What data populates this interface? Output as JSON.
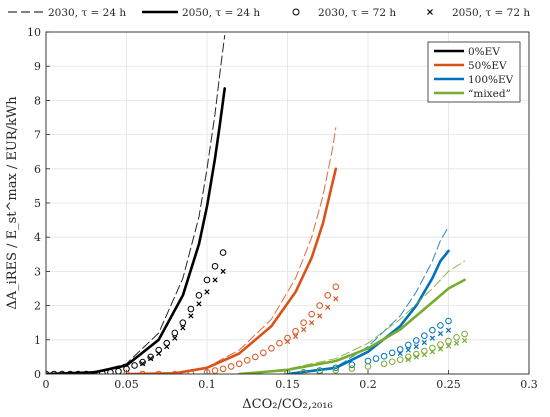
{
  "chart_data": {
    "type": "line",
    "xlabel": "ΔCO₂/CO₂,₂₀₁₆",
    "ylabel": "ΔA_iRES / E_st^max / EUR/kWh",
    "xlim": [
      0,
      0.3
    ],
    "ylim": [
      0,
      10
    ],
    "x_ticks": [
      "0",
      "0.05",
      "0.1",
      "0.15",
      "0.2",
      "0.25",
      "0.3"
    ],
    "y_ticks": [
      "0",
      "1",
      "2",
      "3",
      "4",
      "5",
      "6",
      "7",
      "8",
      "9",
      "10"
    ],
    "grid": true,
    "top_legend": [
      {
        "label": "2030, τ = 24 h",
        "style": "dashed-line"
      },
      {
        "label": "2050, τ = 24 h",
        "style": "solid-line"
      },
      {
        "label": "2030, τ = 72 h",
        "style": "circle-marker"
      },
      {
        "label": "2050, τ = 72 h",
        "style": "x-marker"
      }
    ],
    "legend_position": "top-right",
    "scenario_legend": [
      {
        "label": "0%EV",
        "color": "#000000"
      },
      {
        "label": "50%EV",
        "color": "#D95319"
      },
      {
        "label": "100%EV",
        "color": "#0072BD"
      },
      {
        "label": "“mixed”",
        "color": "#77AC30"
      }
    ],
    "series": [
      {
        "scenario": "0%EV",
        "case": "2030, τ = 24 h",
        "color": "#000000",
        "x": [
          0,
          0.03,
          0.05,
          0.07,
          0.085,
          0.095,
          0.1,
          0.105,
          0.108,
          0.111
        ],
        "y": [
          0,
          0.05,
          0.3,
          1.2,
          2.8,
          4.6,
          6.0,
          7.6,
          8.8,
          9.9
        ]
      },
      {
        "scenario": "0%EV",
        "case": "2050, τ = 24 h",
        "color": "#000000",
        "x": [
          0,
          0.03,
          0.05,
          0.07,
          0.085,
          0.095,
          0.1,
          0.105,
          0.108,
          0.111
        ],
        "y": [
          0,
          0.05,
          0.25,
          1.0,
          2.3,
          3.8,
          4.9,
          6.3,
          7.3,
          8.35
        ]
      },
      {
        "scenario": "0%EV",
        "case": "2030, τ = 72 h",
        "color": "#000000",
        "x": [
          0,
          0.005,
          0.01,
          0.015,
          0.02,
          0.025,
          0.03,
          0.035,
          0.04,
          0.045,
          0.05,
          0.055,
          0.06,
          0.065,
          0.07,
          0.075,
          0.08,
          0.085,
          0.09,
          0.095,
          0.1,
          0.105,
          0.11
        ],
        "y": [
          0,
          0,
          0,
          0,
          0,
          0,
          0,
          0.02,
          0.05,
          0.08,
          0.15,
          0.25,
          0.35,
          0.5,
          0.7,
          0.9,
          1.2,
          1.5,
          1.9,
          2.3,
          2.75,
          3.15,
          3.55
        ]
      },
      {
        "scenario": "0%EV",
        "case": "2050, τ = 72 h",
        "color": "#000000",
        "x": [
          0.06,
          0.065,
          0.07,
          0.075,
          0.08,
          0.085,
          0.09,
          0.095,
          0.1,
          0.105,
          0.11
        ],
        "y": [
          0.3,
          0.45,
          0.6,
          0.8,
          1.05,
          1.35,
          1.7,
          2.05,
          2.4,
          2.75,
          3.0
        ]
      },
      {
        "scenario": "50%EV",
        "case": "2030, τ = 24 h",
        "color": "#D95319",
        "x": [
          0.05,
          0.08,
          0.1,
          0.12,
          0.14,
          0.155,
          0.165,
          0.172,
          0.178,
          0.18
        ],
        "y": [
          0,
          0.02,
          0.2,
          0.7,
          1.6,
          2.8,
          4.0,
          5.2,
          6.6,
          7.2
        ]
      },
      {
        "scenario": "50%EV",
        "case": "2050, τ = 24 h",
        "color": "#D95319",
        "x": [
          0.05,
          0.08,
          0.1,
          0.12,
          0.14,
          0.155,
          0.165,
          0.172,
          0.178,
          0.18
        ],
        "y": [
          0,
          0.02,
          0.18,
          0.6,
          1.4,
          2.4,
          3.4,
          4.4,
          5.6,
          6.0
        ]
      },
      {
        "scenario": "50%EV",
        "case": "2030, τ = 72 h",
        "color": "#D95319",
        "x": [
          0.05,
          0.06,
          0.07,
          0.08,
          0.09,
          0.1,
          0.105,
          0.11,
          0.115,
          0.12,
          0.125,
          0.13,
          0.135,
          0.14,
          0.145,
          0.15,
          0.155,
          0.16,
          0.165,
          0.17,
          0.175,
          0.18
        ],
        "y": [
          0,
          0,
          0,
          0,
          0.02,
          0.05,
          0.1,
          0.15,
          0.22,
          0.3,
          0.4,
          0.5,
          0.62,
          0.75,
          0.9,
          1.05,
          1.25,
          1.5,
          1.75,
          2.0,
          2.3,
          2.55
        ]
      },
      {
        "scenario": "50%EV",
        "case": "2050, τ = 72 h",
        "color": "#D95319",
        "x": [
          0.15,
          0.155,
          0.16,
          0.165,
          0.17,
          0.175,
          0.18
        ],
        "y": [
          0.95,
          1.1,
          1.3,
          1.5,
          1.7,
          1.95,
          2.2
        ]
      },
      {
        "scenario": "100%EV",
        "case": "2030, τ = 24 h",
        "color": "#0072BD",
        "x": [
          0.15,
          0.18,
          0.2,
          0.22,
          0.23,
          0.24,
          0.245,
          0.25
        ],
        "y": [
          0,
          0.2,
          0.8,
          1.7,
          2.4,
          3.3,
          3.9,
          4.3
        ]
      },
      {
        "scenario": "100%EV",
        "case": "2050, τ = 24 h",
        "color": "#0072BD",
        "x": [
          0.15,
          0.18,
          0.2,
          0.22,
          0.23,
          0.24,
          0.245,
          0.25
        ],
        "y": [
          0,
          0.18,
          0.65,
          1.4,
          2.0,
          2.8,
          3.3,
          3.6
        ]
      },
      {
        "scenario": "100%EV",
        "case": "2030, τ = 72 h",
        "color": "#0072BD",
        "x": [
          0.15,
          0.16,
          0.17,
          0.18,
          0.19,
          0.2,
          0.205,
          0.21,
          0.215,
          0.22,
          0.225,
          0.23,
          0.235,
          0.24,
          0.245,
          0.25
        ],
        "y": [
          0.02,
          0.05,
          0.1,
          0.18,
          0.27,
          0.38,
          0.45,
          0.52,
          0.62,
          0.72,
          0.85,
          0.98,
          1.12,
          1.28,
          1.42,
          1.55
        ]
      },
      {
        "scenario": "100%EV",
        "case": "2050, τ = 72 h",
        "color": "#0072BD",
        "x": [
          0.22,
          0.225,
          0.23,
          0.235,
          0.24,
          0.245,
          0.25
        ],
        "y": [
          0.6,
          0.7,
          0.8,
          0.92,
          1.05,
          1.18,
          1.28
        ]
      },
      {
        "scenario": "“mixed”",
        "case": "2030, τ = 24 h",
        "color": "#77AC30",
        "x": [
          0.12,
          0.15,
          0.18,
          0.2,
          0.22,
          0.24,
          0.25,
          0.26
        ],
        "y": [
          0,
          0.15,
          0.45,
          0.9,
          1.6,
          2.5,
          3.0,
          3.3
        ]
      },
      {
        "scenario": "“mixed”",
        "case": "2050, τ = 24 h",
        "color": "#77AC30",
        "x": [
          0.12,
          0.15,
          0.18,
          0.2,
          0.22,
          0.24,
          0.25,
          0.26
        ],
        "y": [
          0,
          0.12,
          0.38,
          0.75,
          1.3,
          2.1,
          2.5,
          2.75
        ]
      },
      {
        "scenario": "“mixed”",
        "case": "2030, τ = 72 h",
        "color": "#77AC30",
        "x": [
          0.15,
          0.16,
          0.17,
          0.18,
          0.19,
          0.2,
          0.21,
          0.215,
          0.22,
          0.225,
          0.23,
          0.235,
          0.24,
          0.245,
          0.25,
          0.255,
          0.26
        ],
        "y": [
          0.02,
          0.04,
          0.07,
          0.11,
          0.16,
          0.22,
          0.3,
          0.36,
          0.42,
          0.5,
          0.58,
          0.67,
          0.76,
          0.86,
          0.96,
          1.07,
          1.17
        ]
      },
      {
        "scenario": "“mixed”",
        "case": "2050, τ = 72 h",
        "color": "#77AC30",
        "x": [
          0.225,
          0.23,
          0.235,
          0.24,
          0.245,
          0.25,
          0.255,
          0.26
        ],
        "y": [
          0.42,
          0.5,
          0.57,
          0.65,
          0.73,
          0.82,
          0.9,
          0.98
        ]
      }
    ]
  }
}
